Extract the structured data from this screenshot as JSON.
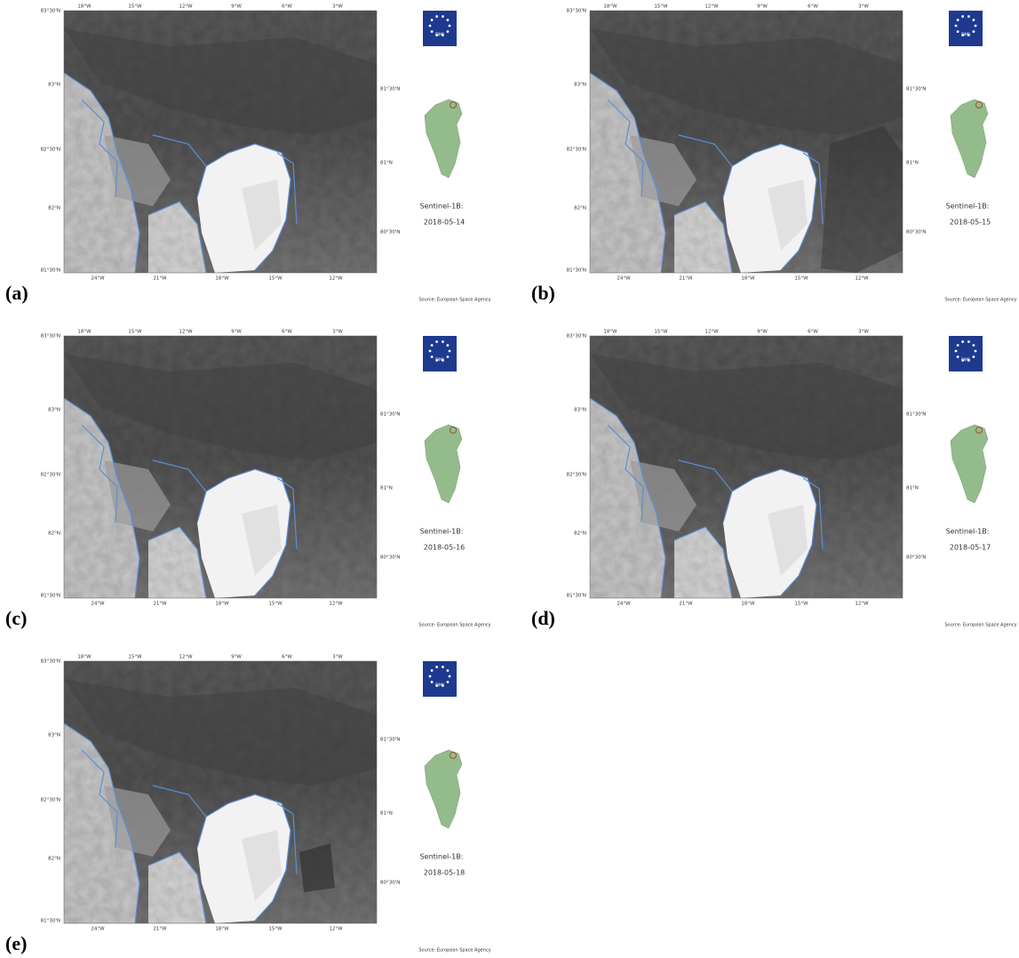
{
  "top_labels": [
    "18°W",
    "15°W",
    "12°W",
    "9°W",
    "6°W",
    "3°W"
  ],
  "left_labels": [
    "83°30'N",
    "83°N",
    "82°30'N",
    "82°N",
    "81°30'N"
  ],
  "right_labels": [
    "81°30'N",
    "81°N",
    "80°30'N"
  ],
  "bottom_labels": [
    "24°W",
    "21°W",
    "18°W",
    "15°W",
    "12°W"
  ],
  "logo_text": "DMI",
  "sensor": "Sentinel-1B:",
  "source": "Source: European Space Agency",
  "panels": [
    {
      "label": "(a)",
      "date": "2018-05-14"
    },
    {
      "label": "(b)",
      "date": "2018-05-15"
    },
    {
      "label": "(c)",
      "date": "2018-05-16"
    },
    {
      "label": "(d)",
      "date": "2018-05-17"
    },
    {
      "label": "(e)",
      "date": "2018-05-18"
    }
  ]
}
